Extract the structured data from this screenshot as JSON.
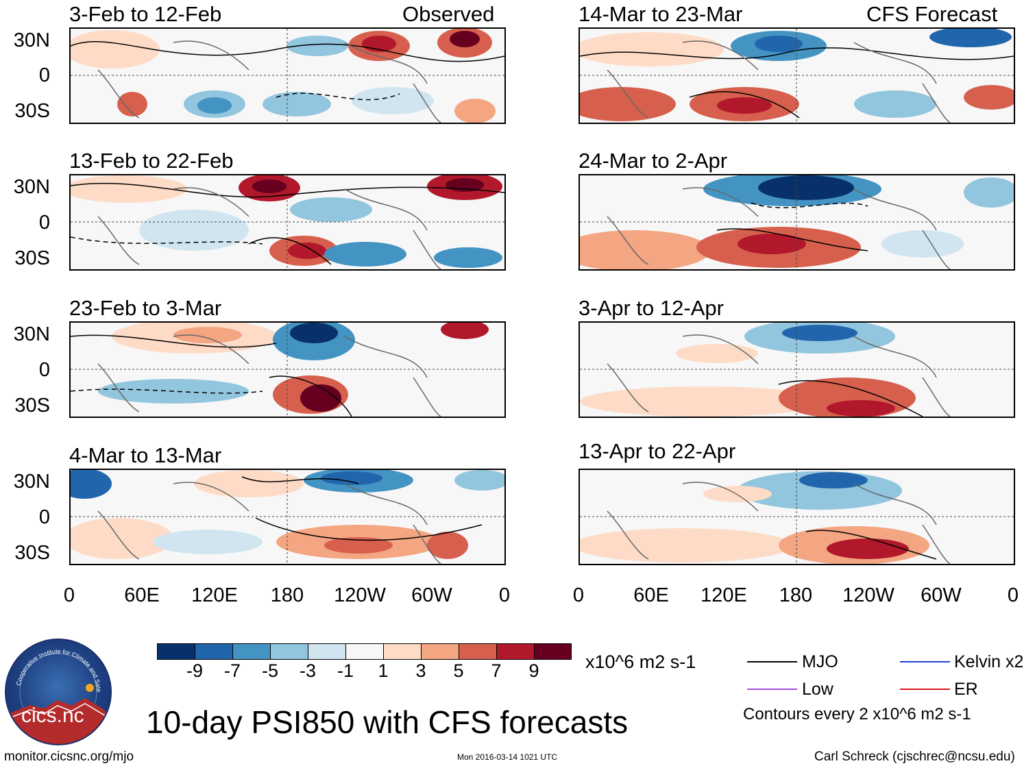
{
  "title": "10-day PSI850 with CFS forecasts",
  "left_column_label": "Observed",
  "right_column_label": "CFS Forecast",
  "panels_left": [
    {
      "period": "3-Feb to 12-Feb"
    },
    {
      "period": "13-Feb to 22-Feb"
    },
    {
      "period": "23-Feb to 3-Mar"
    },
    {
      "period": "4-Mar to 13-Mar"
    }
  ],
  "panels_right": [
    {
      "period": "14-Mar to 23-Mar"
    },
    {
      "period": "24-Mar to 2-Apr"
    },
    {
      "period": "3-Apr to 12-Apr"
    },
    {
      "period": "13-Apr to 22-Apr"
    }
  ],
  "lat_labels": [
    "30N",
    "0",
    "30S"
  ],
  "lon_labels": [
    "0",
    "60E",
    "120E",
    "180",
    "120W",
    "60W",
    "0"
  ],
  "colorbar": {
    "tick_labels": [
      "-9",
      "-7",
      "-5",
      "-3",
      "-1",
      "1",
      "3",
      "5",
      "7",
      "9"
    ],
    "colors": [
      "#08306b",
      "#2166ac",
      "#4393c3",
      "#92c5de",
      "#d1e5f0",
      "#f7f7f7",
      "#fddbc7",
      "#f4a582",
      "#d6604d",
      "#b2182b",
      "#67001f"
    ],
    "units": "x10^6 m2 s-1"
  },
  "legend": {
    "mjo": {
      "label": "MJO",
      "color": "#000000"
    },
    "kelvin": {
      "label": "Kelvin x2",
      "color": "#1f3fd6"
    },
    "low": {
      "label": "Low",
      "color": "#a64bdc"
    },
    "er": {
      "label": "ER",
      "color": "#e0161b"
    },
    "contour_note": "Contours every 2 x10^6 m2 s-1"
  },
  "logo_text": "cics.nc",
  "logo_arc_text": "Cooperative Institute for Climate and Satellites",
  "footer": {
    "url": "monitor.cicsnc.org/mjo",
    "timestamp": "Mon 2016-03-14 1021 UTC",
    "credit": "Carl Schreck (cjschrec@ncsu.edu)"
  }
}
